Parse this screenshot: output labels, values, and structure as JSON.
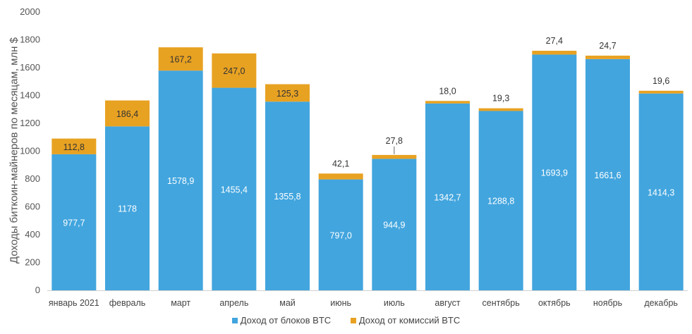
{
  "chart_data": {
    "type": "bar",
    "stacked": true,
    "ylabel": "Доходы биткоин-майнеров по месяцам, млн $",
    "ylim": [
      0,
      2000
    ],
    "yticks": [
      "0",
      "200",
      "400",
      "600",
      "800",
      "1000",
      "1200",
      "1400",
      "1600",
      "1800",
      "2000"
    ],
    "grid": false,
    "legend_placement": "bottom",
    "categories": [
      "январь 2021",
      "февраль",
      "март",
      "апрель",
      "май",
      "июнь",
      "июль",
      "август",
      "сентябрь",
      "октябрь",
      "ноябрь",
      "декабрь"
    ],
    "series": [
      {
        "name": "Доход от блоков BTC",
        "color": "#42a5de",
        "values": [
          977.7,
          1178,
          1578.9,
          1455.4,
          1355.8,
          797.0,
          944.9,
          1342.7,
          1288.8,
          1693.9,
          1661.6,
          1414.3
        ],
        "labels": [
          "977,7",
          "1178",
          "1578,9",
          "1455,4",
          "1355,8",
          "797,0",
          "944,9",
          "1342,7",
          "1288,8",
          "1693,9",
          "1661,6",
          "1414,3"
        ]
      },
      {
        "name": "Доход от комиссий BTC",
        "color": "#e8a222",
        "values": [
          112.8,
          186.4,
          167.2,
          247.0,
          125.3,
          42.1,
          27.8,
          18.0,
          19.3,
          27.4,
          24.7,
          19.6
        ],
        "labels": [
          "112,8",
          "186,4",
          "167,2",
          "247,0",
          "125,3",
          "42,1",
          "27,8",
          "18,0",
          "19,3",
          "27,4",
          "24,7",
          "19,6"
        ]
      }
    ]
  }
}
